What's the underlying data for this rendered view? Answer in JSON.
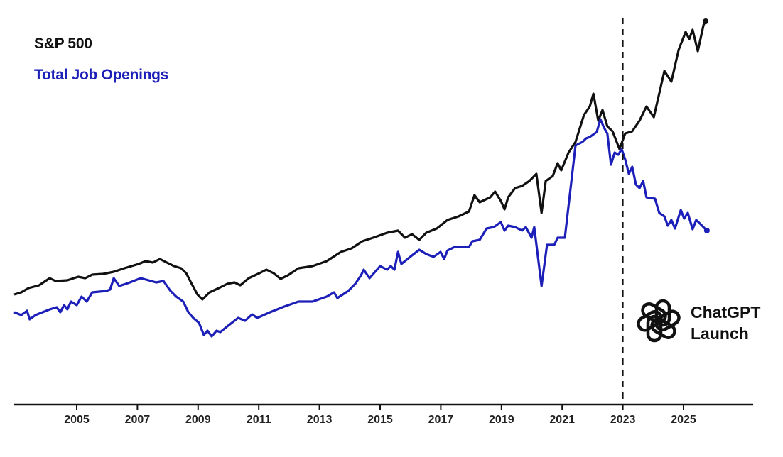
{
  "chart_data": {
    "type": "line",
    "title": "",
    "xlabel": "",
    "ylabel": "",
    "x_ticks": [
      "2005",
      "2007",
      "2009",
      "2011",
      "2013",
      "2015",
      "2017",
      "2019",
      "2021",
      "2023",
      "2025"
    ],
    "xlim": [
      2002.9,
      2027.3
    ],
    "ylim": [
      0,
      110
    ],
    "y_axis_shown": false,
    "grid": false,
    "legend_placement": "top-left",
    "annotation": {
      "line1": "ChatGPT",
      "line2": "Launch",
      "x": 2023.0,
      "style": "dashed vertical line",
      "icon": "openai-logo-icon"
    },
    "series": [
      {
        "name": "S&P 500",
        "color": "#111111",
        "points": [
          [
            2002.94,
            31.0
          ],
          [
            2003.17,
            31.6
          ],
          [
            2003.41,
            32.8
          ],
          [
            2003.76,
            33.6
          ],
          [
            2004.11,
            35.6
          ],
          [
            2004.3,
            34.8
          ],
          [
            2004.69,
            35.0
          ],
          [
            2005.05,
            36.0
          ],
          [
            2005.28,
            35.6
          ],
          [
            2005.51,
            36.6
          ],
          [
            2005.87,
            36.8
          ],
          [
            2006.22,
            37.4
          ],
          [
            2006.57,
            38.4
          ],
          [
            2007.04,
            39.6
          ],
          [
            2007.27,
            40.4
          ],
          [
            2007.51,
            40.0
          ],
          [
            2007.74,
            41.0
          ],
          [
            2007.97,
            40.0
          ],
          [
            2008.21,
            39.0
          ],
          [
            2008.44,
            38.4
          ],
          [
            2008.61,
            37.0
          ],
          [
            2008.79,
            34.0
          ],
          [
            2008.98,
            31.0
          ],
          [
            2009.14,
            29.6
          ],
          [
            2009.38,
            31.6
          ],
          [
            2009.73,
            33.0
          ],
          [
            2009.96,
            34.0
          ],
          [
            2010.2,
            34.4
          ],
          [
            2010.39,
            33.6
          ],
          [
            2010.67,
            35.6
          ],
          [
            2011.02,
            37.0
          ],
          [
            2011.25,
            38.0
          ],
          [
            2011.49,
            37.0
          ],
          [
            2011.72,
            35.4
          ],
          [
            2011.96,
            36.4
          ],
          [
            2012.31,
            38.4
          ],
          [
            2012.77,
            39.0
          ],
          [
            2013.24,
            40.4
          ],
          [
            2013.71,
            43.0
          ],
          [
            2014.06,
            44.0
          ],
          [
            2014.41,
            46.0
          ],
          [
            2014.77,
            47.0
          ],
          [
            2015.23,
            48.4
          ],
          [
            2015.59,
            49.0
          ],
          [
            2015.82,
            47.0
          ],
          [
            2016.05,
            48.0
          ],
          [
            2016.29,
            46.4
          ],
          [
            2016.52,
            48.4
          ],
          [
            2016.87,
            49.6
          ],
          [
            2017.22,
            52.0
          ],
          [
            2017.58,
            53.0
          ],
          [
            2017.93,
            54.4
          ],
          [
            2018.11,
            59.0
          ],
          [
            2018.28,
            57.0
          ],
          [
            2018.63,
            58.4
          ],
          [
            2018.79,
            60.0
          ],
          [
            2018.98,
            57.4
          ],
          [
            2019.1,
            55.0
          ],
          [
            2019.22,
            58.4
          ],
          [
            2019.45,
            61.0
          ],
          [
            2019.68,
            61.6
          ],
          [
            2019.92,
            63.0
          ],
          [
            2020.15,
            65.0
          ],
          [
            2020.32,
            54.0
          ],
          [
            2020.46,
            63.0
          ],
          [
            2020.69,
            64.4
          ],
          [
            2020.85,
            68.0
          ],
          [
            2020.97,
            66.0
          ],
          [
            2021.21,
            71.0
          ],
          [
            2021.44,
            74.0
          ],
          [
            2021.72,
            81.6
          ],
          [
            2021.91,
            84.0
          ],
          [
            2022.03,
            87.6
          ],
          [
            2022.19,
            80.0
          ],
          [
            2022.33,
            83.0
          ],
          [
            2022.49,
            78.4
          ],
          [
            2022.66,
            77.0
          ],
          [
            2022.89,
            72.0
          ],
          [
            2023.08,
            76.4
          ],
          [
            2023.31,
            77.0
          ],
          [
            2023.55,
            80.0
          ],
          [
            2023.78,
            84.0
          ],
          [
            2024.02,
            81.0
          ],
          [
            2024.37,
            94.0
          ],
          [
            2024.6,
            91.0
          ],
          [
            2024.84,
            100.0
          ],
          [
            2025.07,
            105.0
          ],
          [
            2025.19,
            103.0
          ],
          [
            2025.3,
            105.6
          ],
          [
            2025.47,
            99.6
          ],
          [
            2025.66,
            107.0
          ],
          [
            2025.73,
            108.0
          ]
        ]
      },
      {
        "name": "Total Job Openings",
        "color": "#1c1fb8",
        "points": [
          [
            2002.94,
            26.0
          ],
          [
            2003.17,
            25.2
          ],
          [
            2003.36,
            26.4
          ],
          [
            2003.45,
            24.0
          ],
          [
            2003.64,
            25.2
          ],
          [
            2004.11,
            26.8
          ],
          [
            2004.34,
            27.4
          ],
          [
            2004.46,
            26.0
          ],
          [
            2004.58,
            28.0
          ],
          [
            2004.69,
            26.8
          ],
          [
            2004.81,
            29.0
          ],
          [
            2005.0,
            28.0
          ],
          [
            2005.16,
            30.4
          ],
          [
            2005.33,
            29.0
          ],
          [
            2005.51,
            31.6
          ],
          [
            2005.98,
            32.0
          ],
          [
            2006.1,
            32.4
          ],
          [
            2006.22,
            35.6
          ],
          [
            2006.4,
            33.4
          ],
          [
            2006.69,
            34.2
          ],
          [
            2007.11,
            35.6
          ],
          [
            2007.62,
            34.4
          ],
          [
            2007.86,
            34.8
          ],
          [
            2008.09,
            32.0
          ],
          [
            2008.28,
            30.4
          ],
          [
            2008.51,
            29.0
          ],
          [
            2008.68,
            26.0
          ],
          [
            2008.84,
            24.4
          ],
          [
            2009.03,
            23.0
          ],
          [
            2009.19,
            19.6
          ],
          [
            2009.31,
            20.8
          ],
          [
            2009.45,
            19.2
          ],
          [
            2009.61,
            20.8
          ],
          [
            2009.73,
            20.4
          ],
          [
            2009.96,
            22.0
          ],
          [
            2010.32,
            24.4
          ],
          [
            2010.55,
            23.6
          ],
          [
            2010.78,
            25.4
          ],
          [
            2010.95,
            24.4
          ],
          [
            2011.37,
            26.0
          ],
          [
            2011.84,
            27.6
          ],
          [
            2012.31,
            29.0
          ],
          [
            2012.77,
            29.0
          ],
          [
            2013.24,
            30.4
          ],
          [
            2013.48,
            31.6
          ],
          [
            2013.59,
            30.0
          ],
          [
            2013.95,
            32.0
          ],
          [
            2014.18,
            34.0
          ],
          [
            2014.37,
            36.4
          ],
          [
            2014.46,
            38.0
          ],
          [
            2014.65,
            35.6
          ],
          [
            2015.0,
            39.0
          ],
          [
            2015.23,
            38.0
          ],
          [
            2015.35,
            39.0
          ],
          [
            2015.47,
            38.0
          ],
          [
            2015.59,
            43.0
          ],
          [
            2015.7,
            39.6
          ],
          [
            2016.05,
            42.0
          ],
          [
            2016.29,
            43.6
          ],
          [
            2016.52,
            42.4
          ],
          [
            2016.76,
            41.6
          ],
          [
            2016.99,
            43.0
          ],
          [
            2017.11,
            41.0
          ],
          [
            2017.22,
            43.4
          ],
          [
            2017.46,
            44.4
          ],
          [
            2017.93,
            44.4
          ],
          [
            2018.04,
            46.0
          ],
          [
            2018.28,
            46.4
          ],
          [
            2018.51,
            49.6
          ],
          [
            2018.75,
            50.0
          ],
          [
            2018.98,
            51.4
          ],
          [
            2019.1,
            49.0
          ],
          [
            2019.22,
            50.4
          ],
          [
            2019.45,
            50.0
          ],
          [
            2019.68,
            49.0
          ],
          [
            2019.8,
            50.0
          ],
          [
            2019.99,
            47.0
          ],
          [
            2020.08,
            50.0
          ],
          [
            2020.32,
            33.4
          ],
          [
            2020.5,
            45.0
          ],
          [
            2020.74,
            45.0
          ],
          [
            2020.85,
            47.0
          ],
          [
            2021.09,
            47.0
          ],
          [
            2021.44,
            73.0
          ],
          [
            2021.67,
            74.0
          ],
          [
            2021.79,
            75.0
          ],
          [
            2021.91,
            75.4
          ],
          [
            2022.14,
            76.8
          ],
          [
            2022.26,
            80.4
          ],
          [
            2022.38,
            78.0
          ],
          [
            2022.49,
            76.4
          ],
          [
            2022.61,
            67.6
          ],
          [
            2022.73,
            71.0
          ],
          [
            2022.85,
            70.4
          ],
          [
            2022.96,
            72.0
          ],
          [
            2023.08,
            69.0
          ],
          [
            2023.2,
            65.0
          ],
          [
            2023.31,
            67.0
          ],
          [
            2023.43,
            62.0
          ],
          [
            2023.55,
            61.0
          ],
          [
            2023.67,
            63.0
          ],
          [
            2023.78,
            58.4
          ],
          [
            2024.06,
            58.0
          ],
          [
            2024.2,
            54.0
          ],
          [
            2024.37,
            53.0
          ],
          [
            2024.48,
            50.4
          ],
          [
            2024.6,
            52.0
          ],
          [
            2024.72,
            49.6
          ],
          [
            2024.91,
            54.8
          ],
          [
            2025.02,
            52.4
          ],
          [
            2025.14,
            54.0
          ],
          [
            2025.3,
            49.4
          ],
          [
            2025.42,
            52.0
          ],
          [
            2025.54,
            51.0
          ],
          [
            2025.77,
            49.0
          ]
        ]
      }
    ]
  }
}
